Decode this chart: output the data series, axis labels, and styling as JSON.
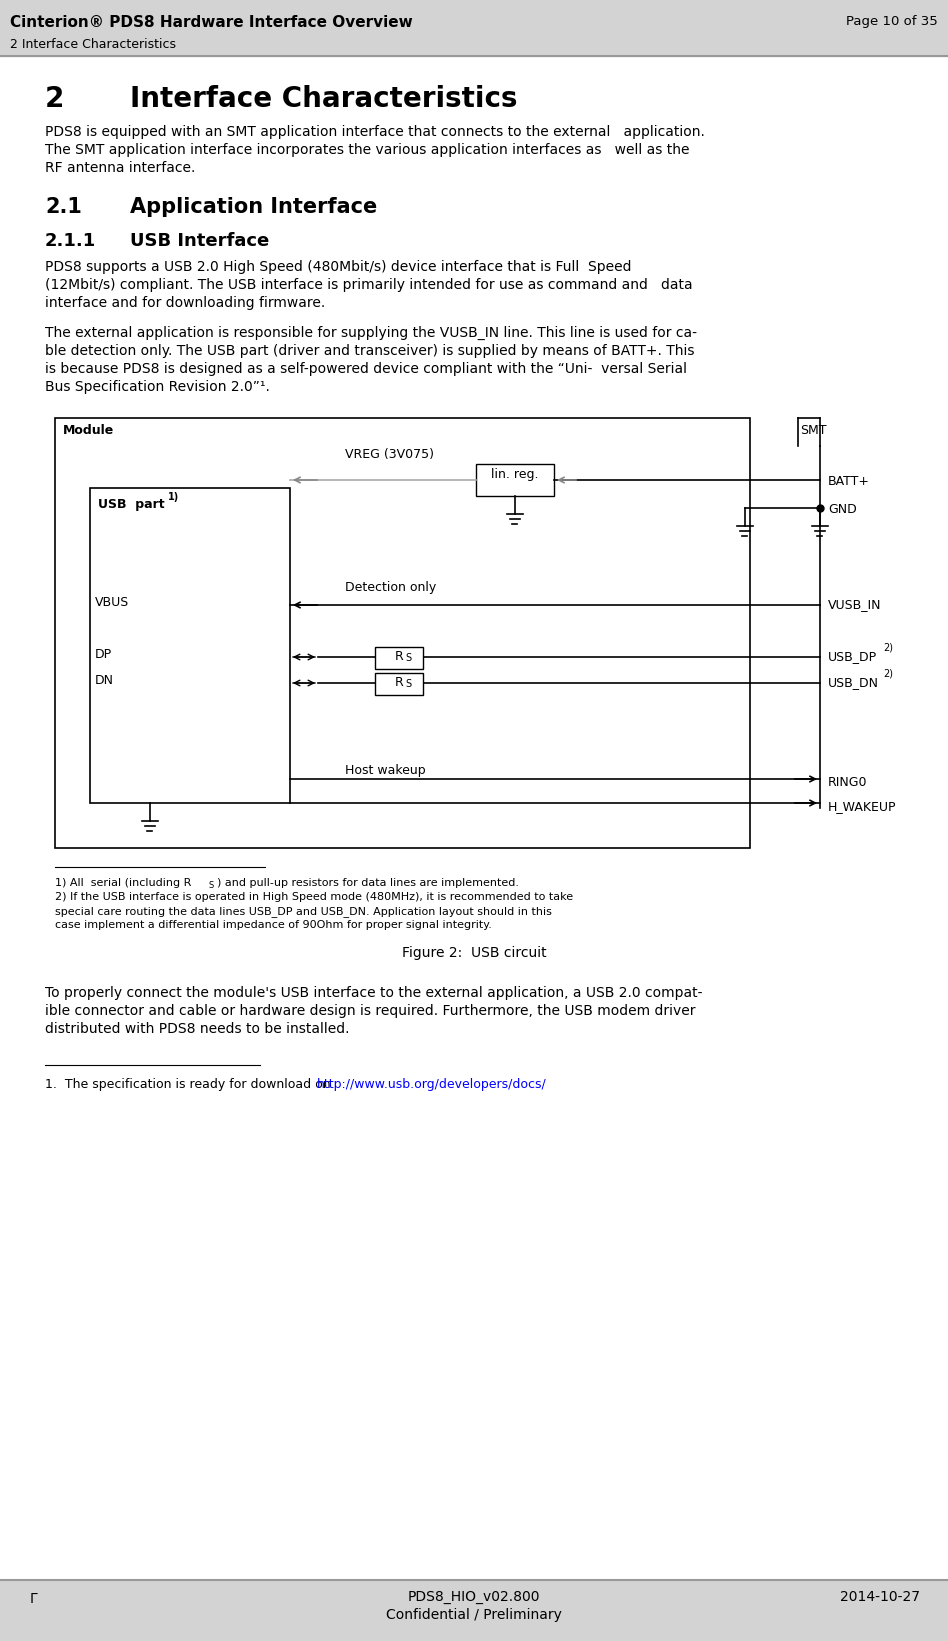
{
  "page_title": "Cinterion® PDS8 Hardware Interface Overview",
  "page_right": "Page 10 of 35",
  "section_header": "2 Interface Characteristics",
  "bg_color": "#ffffff",
  "header_bg": "#d3d3d3",
  "footer_bg": "#d3d3d3",
  "section_num": "2",
  "section_title": "Interface Characteristics",
  "subsection_21": "2.1",
  "subsection_21_title": "Application Interface",
  "subsection_211": "2.1.1",
  "subsection_211_title": "USB Interface",
  "para1_lines": [
    "PDS8 is equipped with an SMT application interface that connects to the external   application.",
    "The SMT application interface incorporates the various application interfaces as   well as the",
    "RF antenna interface."
  ],
  "para2_lines": [
    "PDS8 supports a USB 2.0 High Speed (480Mbit/s) device interface that is Full  Speed",
    "(12Mbit/s) compliant. The USB interface is primarily intended for use as command and   data",
    "interface and for downloading firmware."
  ],
  "para3_lines": [
    "The external application is responsible for supplying the VUSB_IN line. This line is used for ca-",
    "ble detection only. The USB part (driver and transceiver) is supplied by means of BATT+. This",
    "is because PDS8 is designed as a self-powered device compliant with the “Uni-  versal Serial",
    "Bus Specification Revision 2.0”¹."
  ],
  "figure_caption": "Figure 2:  USB circuit",
  "fn2_lines": [
    "2) If the USB interface is operated in High Speed mode (480MHz), it is recommended to take",
    "special care routing the data lines USB_DP and USB_DN. Application layout should in this",
    "case implement a differential impedance of 90Ohm for proper signal integrity."
  ],
  "para_final_lines": [
    "To properly connect the module's USB interface to the external application, a USB 2.0 compat-",
    "ible connector and cable or hardware design is required. Furthermore, the USB modem driver",
    "distributed with PDS8 needs to be installed."
  ],
  "footer_center1": "PDS8_HIO_v02.800",
  "footer_center2": "Confidential / Preliminary",
  "footer_right": "2014-10-27",
  "footer_left": "Γ"
}
